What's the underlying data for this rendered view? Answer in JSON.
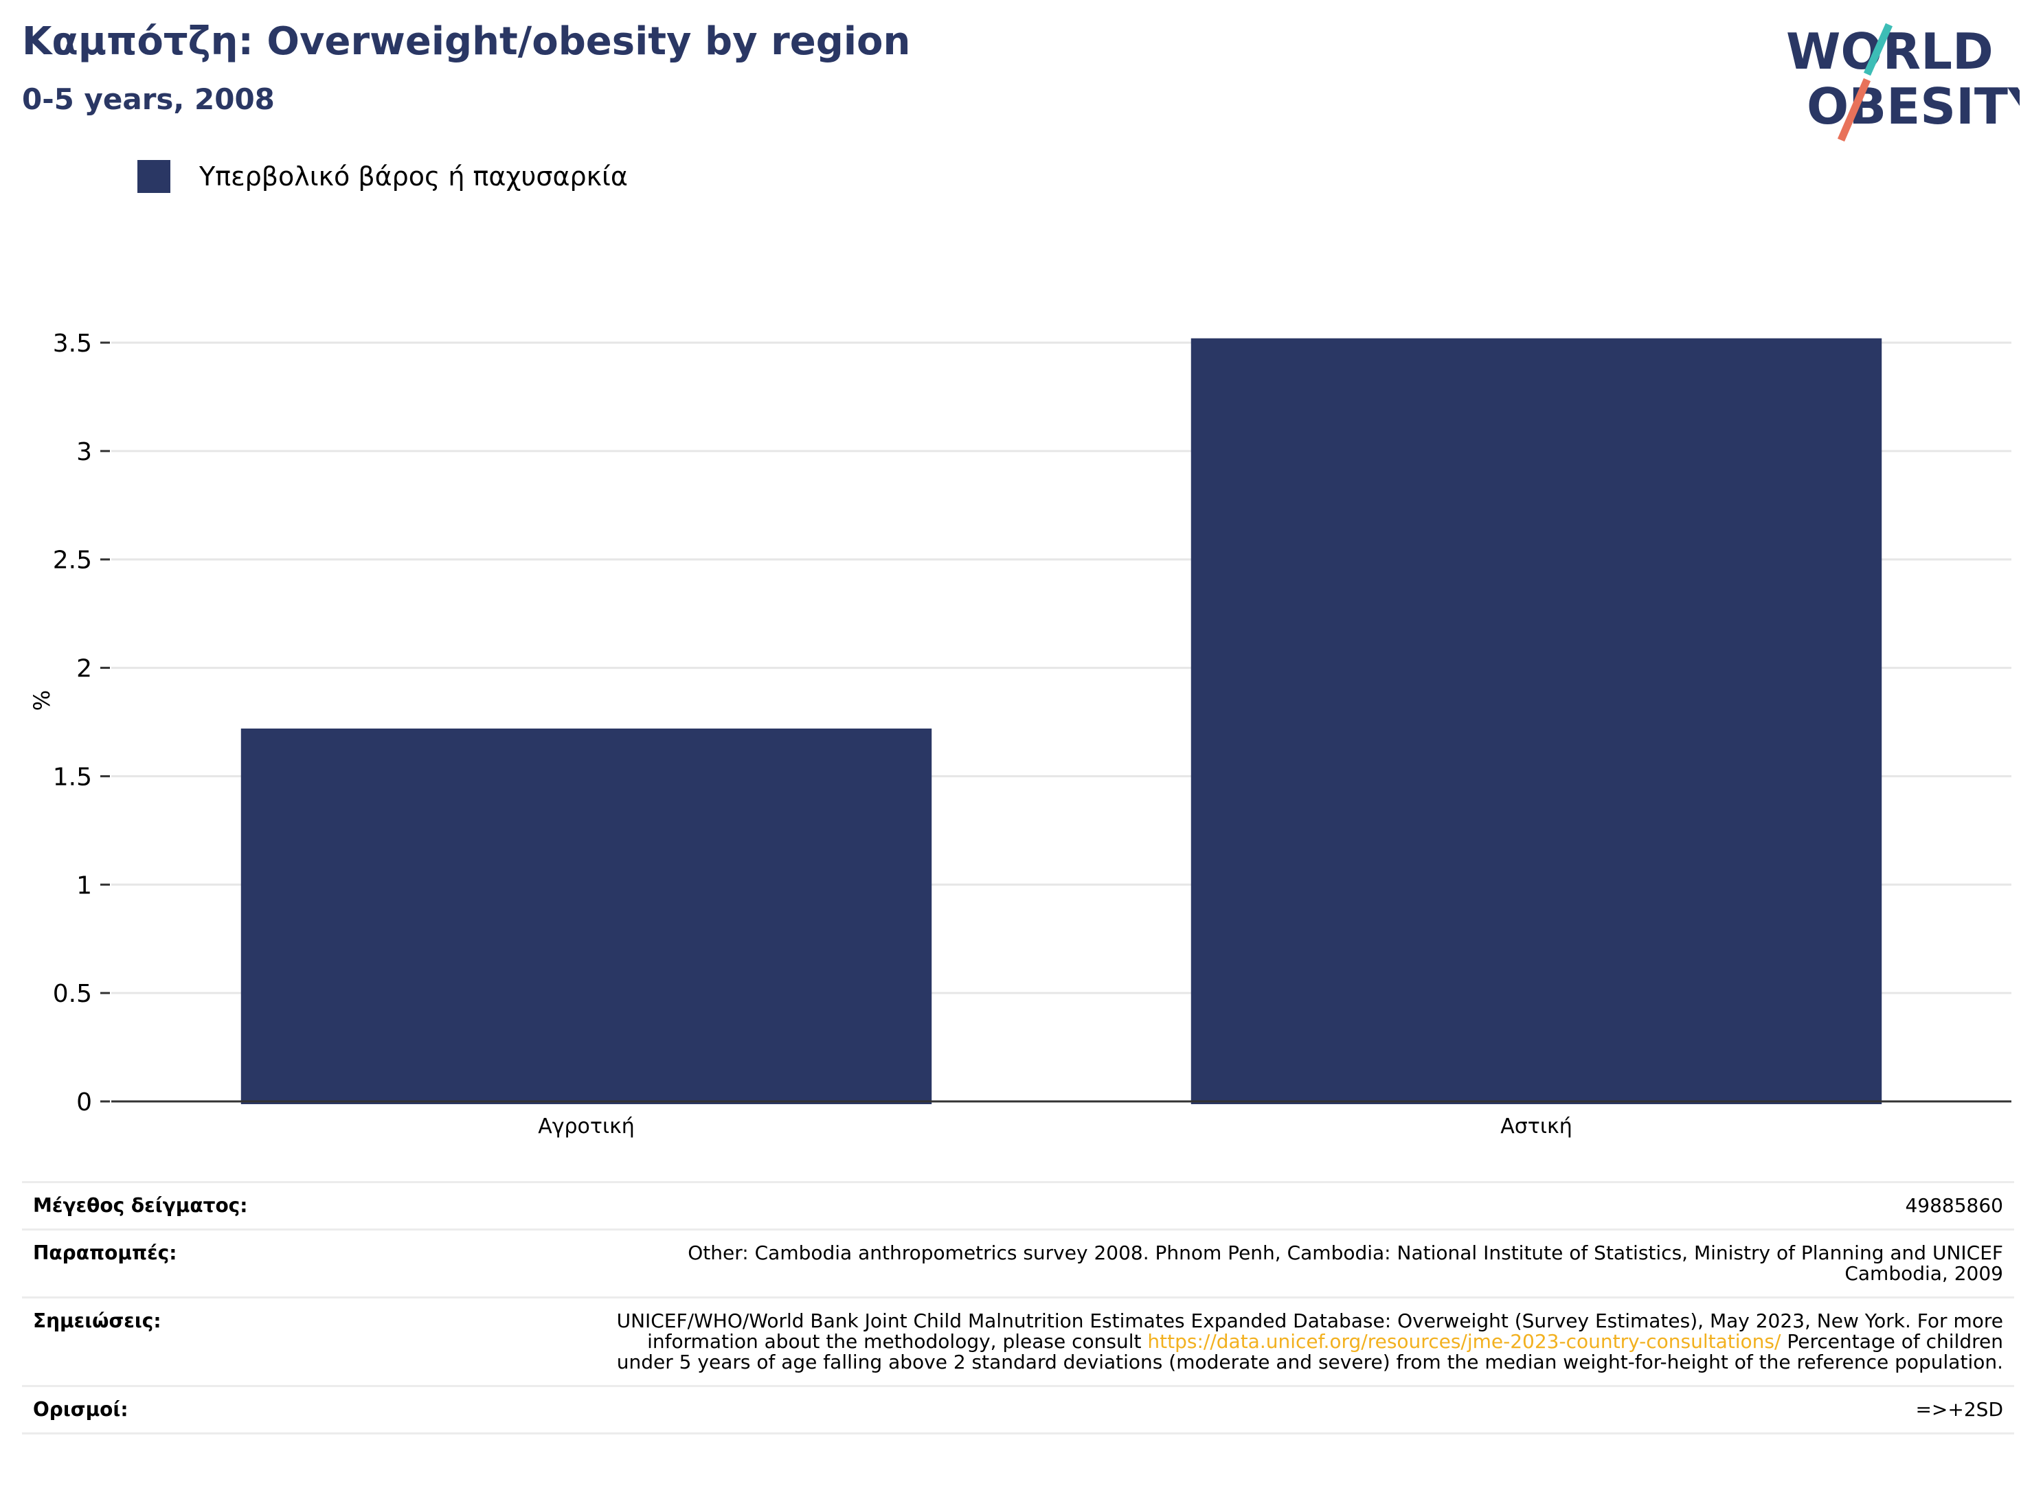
{
  "header": {
    "title": "Καμπότζη: Overweight/obesity by region",
    "subtitle": "0-5 years, 2008"
  },
  "logo": {
    "line1": "WORLD",
    "line2": "OBESITY",
    "icon": "world-obesity-logo"
  },
  "colors": {
    "bar": "#2a3764",
    "title": "#2a3764",
    "link": "#f2b01e",
    "logo_teal": "#3dbdb6",
    "logo_coral": "#e8725a"
  },
  "chart_data": {
    "type": "bar",
    "categories": [
      "Αγροτική",
      "Αστική"
    ],
    "series": [
      {
        "name": "Υπερβολικό βάρος ή παχυσαρκία",
        "values": [
          1.72,
          3.52
        ]
      }
    ],
    "ylabel": "%",
    "ylim": [
      0,
      3.5
    ],
    "yticks": [
      "0",
      "0.5",
      "1",
      "1.5",
      "2",
      "2.5",
      "3",
      "3.5"
    ],
    "legend_position": "top-left",
    "grid": true
  },
  "notes": {
    "sample_label": "Μέγεθος δείγματος:",
    "sample_value": "49885860",
    "refs_label": "Παραπομπές:",
    "refs_value": "Other: Cambodia anthropometrics survey 2008. Phnom Penh, Cambodia: National Institute of Statistics, Ministry of Planning and UNICEF Cambodia, 2009",
    "remarks_label": "Σημειώσεις:",
    "remarks_before": "UNICEF/WHO/World Bank Joint Child Malnutrition Estimates Expanded Database: Overweight (Survey Estimates), May 2023, New York. For more information about the methodology, please consult ",
    "remarks_link": "https://data.unicef.org/resources/jme-2023-country-consultations/",
    "remarks_after": " Percentage of children under 5 years of age falling above 2 standard deviations (moderate and severe) from the median weight-for-height of the reference population.",
    "defs_label": "Ορισμοί:",
    "defs_value": "=>+2SD"
  }
}
